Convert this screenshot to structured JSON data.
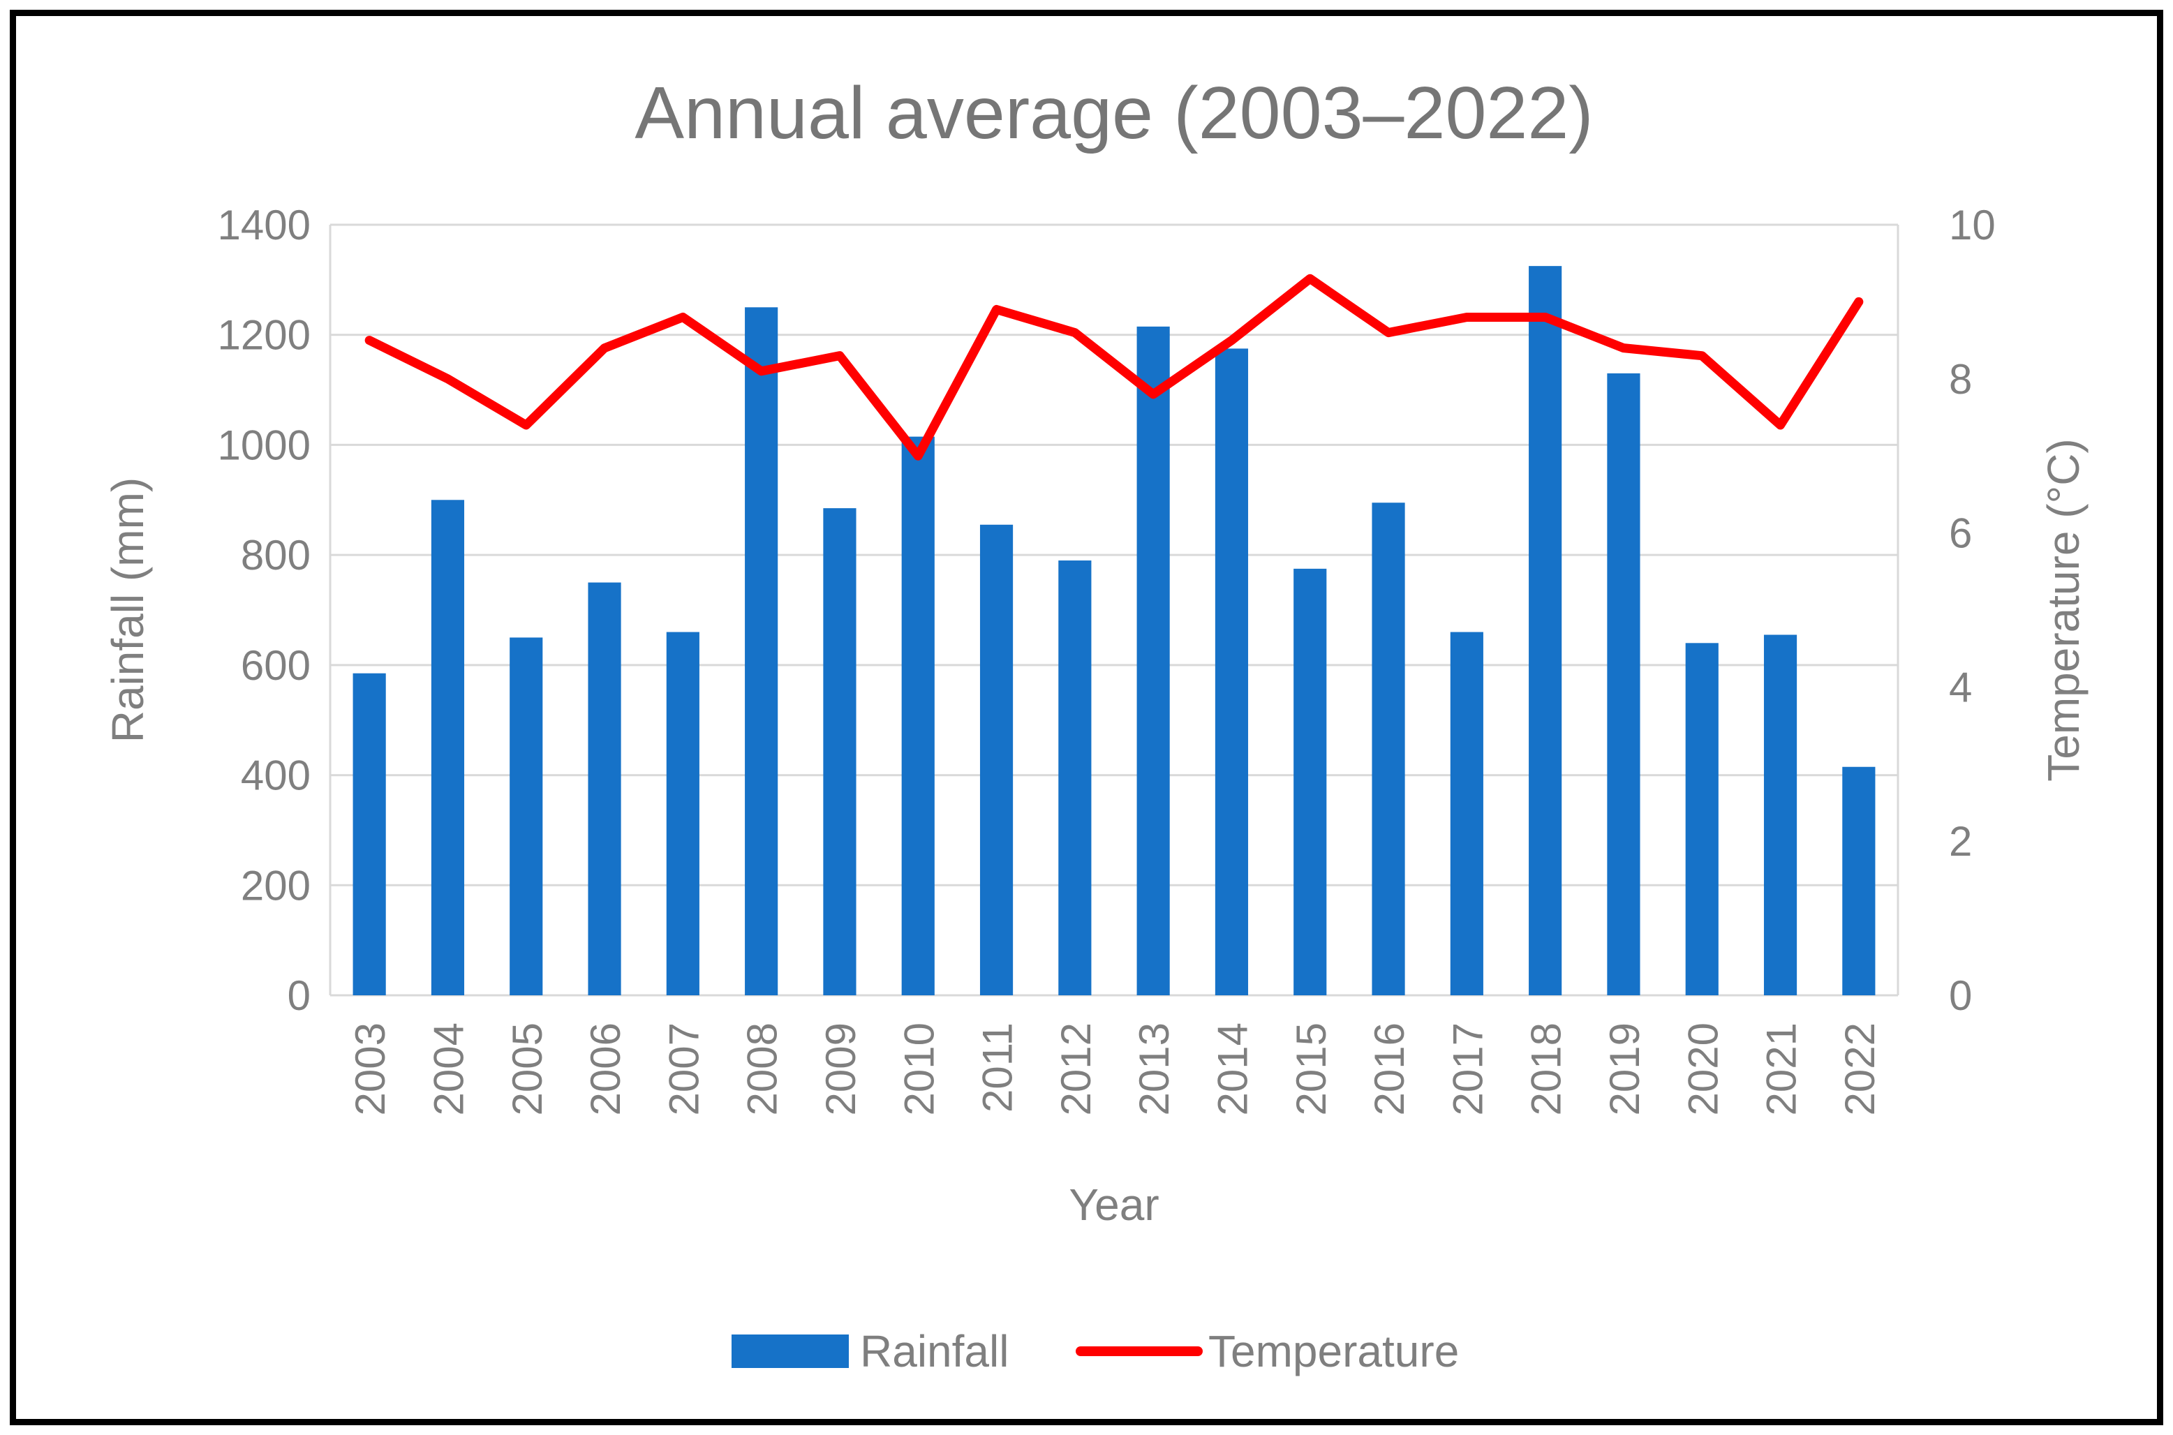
{
  "title": "Annual average (2003–2022)",
  "axes": {
    "x_title": "Year",
    "y_left_title": "Rainfall (mm)",
    "y_right_title": "Temperature (°C)"
  },
  "legend": {
    "items": [
      {
        "label": "Rainfall",
        "swatch": "bar-swatch",
        "color": "#1672C8"
      },
      {
        "label": "Temperature",
        "swatch": "line-swatch",
        "color": "#FF0000"
      }
    ]
  },
  "colors": {
    "bar": "#1672C8",
    "line": "#FF0000",
    "grid": "#D9D9D9",
    "axis_line": "#D9D9D9",
    "text": "#7F7F7F",
    "title": "#767676",
    "border": "#000000",
    "background": "#FFFFFF"
  },
  "chart_data": {
    "type": "combo bar+line, dual axis",
    "title": "Annual average (2003–2022)",
    "xlabel": "Year",
    "ylabel_left": "Rainfall (mm)",
    "ylabel_right": "Temperature (°C)",
    "categories": [
      "2003",
      "2004",
      "2005",
      "2006",
      "2007",
      "2008",
      "2009",
      "2010",
      "2011",
      "2012",
      "2013",
      "2014",
      "2015",
      "2016",
      "2017",
      "2018",
      "2019",
      "2020",
      "2021",
      "2022"
    ],
    "series": [
      {
        "name": "Rainfall",
        "type": "bar",
        "axis": "left",
        "unit": "mm",
        "color": "#1672C8",
        "values": [
          585,
          900,
          650,
          750,
          660,
          1250,
          885,
          1015,
          855,
          790,
          1215,
          1175,
          775,
          895,
          660,
          1325,
          1130,
          640,
          655,
          415
        ]
      },
      {
        "name": "Temperature",
        "type": "line",
        "axis": "right",
        "unit": "°C",
        "color": "#FF0000",
        "values": [
          8.5,
          8.0,
          7.4,
          8.4,
          8.8,
          8.1,
          8.3,
          7.0,
          8.9,
          8.6,
          7.8,
          8.5,
          9.3,
          8.6,
          8.8,
          8.8,
          8.4,
          8.3,
          7.4,
          9.0
        ]
      }
    ],
    "ylim_left": [
      0,
      1400
    ],
    "ylim_right": [
      0,
      10
    ],
    "ticks_left": [
      0,
      200,
      400,
      600,
      800,
      1000,
      1200,
      1400
    ],
    "ticks_right": [
      0,
      2,
      4,
      6,
      8,
      10
    ],
    "gridlines": "horizontal, every 200 mm / 2 °C",
    "legend_position": "bottom-center",
    "x_tick_rotation": "vertical (reads bottom to top)"
  }
}
